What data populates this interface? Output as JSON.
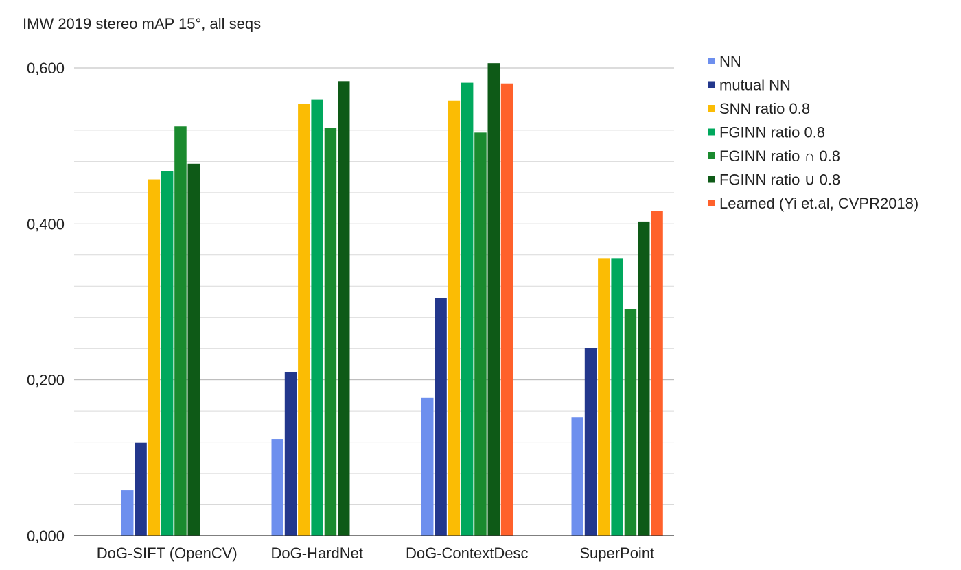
{
  "chart_data": {
    "type": "bar",
    "title": "IMW 2019 stereo mAP 15°, all seqs",
    "xlabel": "",
    "ylabel": "",
    "ylim": [
      0,
      0.6
    ],
    "y_ticks": [
      "0,000",
      "0,200",
      "0,400",
      "0,600"
    ],
    "y_tick_values": [
      0,
      0.2,
      0.4,
      0.6
    ],
    "grid": true,
    "legend_position": "right",
    "categories": [
      "DoG-SIFT (OpenCV)",
      "DoG-HardNet",
      "DoG-ContextDesc",
      "SuperPoint"
    ],
    "series": [
      {
        "name": "NN",
        "color": "#6d8fee",
        "values": [
          0.058,
          0.124,
          0.177,
          0.152
        ]
      },
      {
        "name": "mutual NN",
        "color": "#23378c",
        "values": [
          0.119,
          0.21,
          0.305,
          0.241
        ]
      },
      {
        "name": "SNN ratio 0.8",
        "color": "#fbbc04",
        "values": [
          0.457,
          0.554,
          0.558,
          0.356
        ]
      },
      {
        "name": "FGINN ratio 0.8",
        "color": "#00a85d",
        "values": [
          0.468,
          0.559,
          0.581,
          0.356
        ]
      },
      {
        "name": "FGINN ratio  ∩ 0.8",
        "color": "#1a8a2e",
        "values": [
          0.525,
          0.523,
          0.517,
          0.291
        ]
      },
      {
        "name": "FGINN ratio ∪ 0.8",
        "color": "#0e5a17",
        "values": [
          0.477,
          0.583,
          0.606,
          0.403
        ]
      },
      {
        "name": "Learned (Yi et.al, CVPR2018)",
        "color": "#ff612b",
        "values": [
          null,
          null,
          0.58,
          0.417
        ]
      }
    ]
  }
}
